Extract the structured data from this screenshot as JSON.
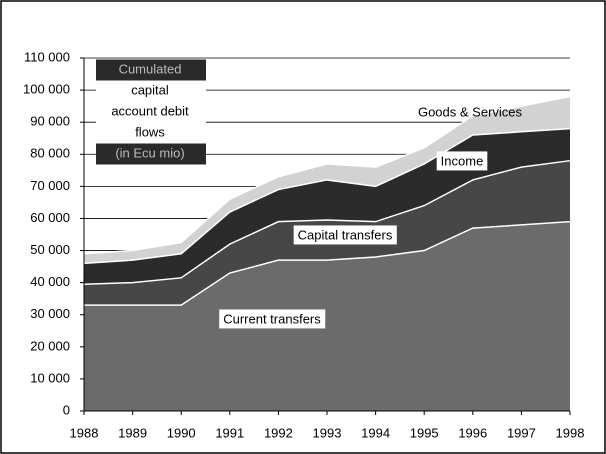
{
  "chart_data": {
    "type": "stacked_area",
    "title": [
      "Cumulated",
      "capital",
      "account debit",
      "flows",
      "(in Ecu mio)"
    ],
    "x": [
      1988,
      1989,
      1990,
      1991,
      1992,
      1993,
      1994,
      1995,
      1996,
      1997,
      1998
    ],
    "xlim": [
      1988,
      1998
    ],
    "xticks": [
      1988,
      1989,
      1990,
      1991,
      1992,
      1993,
      1994,
      1995,
      1996,
      1997,
      1998
    ],
    "ylim": [
      0,
      110000
    ],
    "yticks": [
      0,
      {
        "value": 10000,
        "label": "10 000"
      },
      {
        "value": 20000,
        "label": "20 000"
      },
      {
        "value": 30000,
        "label": "30 000"
      },
      {
        "value": 40000,
        "label": "40 000"
      },
      {
        "value": 50000,
        "label": "50 000"
      },
      {
        "value": 60000,
        "label": "60 000"
      },
      {
        "value": 70000,
        "label": "70 000"
      },
      {
        "value": 80000,
        "label": "80 000"
      },
      {
        "value": 90000,
        "label": "90 000"
      },
      {
        "value": 100000,
        "label": "100 000"
      },
      {
        "value": 110000,
        "label": "110 000"
      }
    ],
    "grid": true,
    "series": [
      {
        "name": "Current transfers",
        "color": "#6b6b6b",
        "values": [
          33000,
          33000,
          33000,
          43000,
          47000,
          47000,
          48000,
          50000,
          57000,
          58000,
          59000
        ]
      },
      {
        "name": "Capital transfers",
        "color": "#474747",
        "values": [
          6500,
          7000,
          8500,
          9000,
          12000,
          12500,
          11000,
          14000,
          15000,
          18000,
          19000
        ]
      },
      {
        "name": "Income",
        "color": "#2b2b2b",
        "values": [
          6500,
          7000,
          7500,
          10000,
          10000,
          12500,
          11000,
          13000,
          14000,
          11000,
          10000
        ]
      },
      {
        "name": "Goods & Services",
        "color": "#d2d2d2",
        "values": [
          3000,
          3000,
          3500,
          4000,
          4000,
          5000,
          6000,
          5000,
          6000,
          8000,
          10000
        ]
      }
    ]
  }
}
